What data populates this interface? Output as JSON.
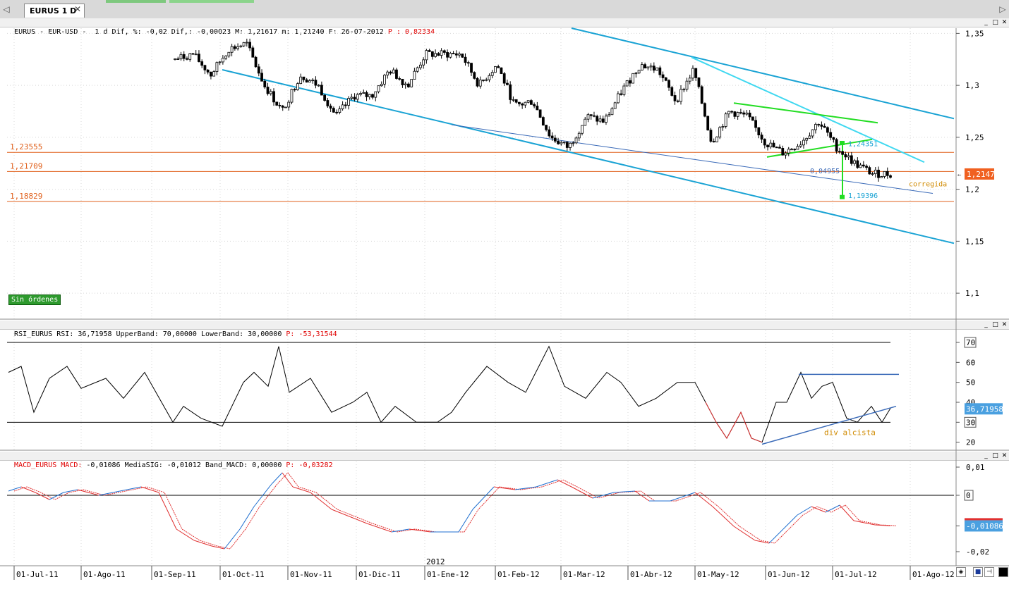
{
  "tabs": {
    "active_label": "EURUS 1 D",
    "close_glyph": "✕",
    "left_arrow": "◁",
    "right_arrow": "▷",
    "strip_colors": [
      "#7ec87e",
      "#8bd48b",
      "#e7a86a",
      "#c9c9e8",
      "#e6c4c4"
    ]
  },
  "price_header": {
    "text": "EURUS - EUR-USD -  1 d Dif, %: -0,02 Dif,: -0,00023 M: 1,21617 m: 1,21240 F: 26-07-2012 ",
    "p_text": "P : 0,82334"
  },
  "rsi_header": {
    "text": "RSI_EURUS RSI: 36,71958 UpperBand: 70,00000 LowerBand: 30,00000 ",
    "p_text": "P: -53,31544"
  },
  "macd_header": {
    "name": "MACD_EURUS MACD:",
    "text": " -0,01086 MediaSIG: -0,01012 Band_MACD: 0,00000 ",
    "p_text": "P: -0,03282"
  },
  "window_buttons": {
    "minimize": "_",
    "maximize": "□",
    "close": "✕"
  },
  "orders_button": {
    "label": "Sin órdenes"
  },
  "colors": {
    "channel": "#1aa3d4",
    "trendline_light": "#3fd8f0",
    "triangle": "#22dd22",
    "support_lines": "#e0601c",
    "inner_line": "#3a6ab8",
    "price_badge_bg": "#f06020",
    "rsi_badge_bg": "#4aa0e0",
    "macd_line": "#1f6fd0",
    "macd_signal": "#e03030"
  },
  "chart_data": [
    {
      "type": "candlestick",
      "series": [
        {
          "name": "EURUS - EUR-USD",
          "values": [
            1.325,
            1.33,
            1.31,
            1.335,
            1.34,
            1.3,
            1.275,
            1.31,
            1.3,
            1.27,
            1.29,
            1.29,
            1.315,
            1.3,
            1.33,
            1.33,
            1.33,
            1.3,
            1.32,
            1.28,
            1.285,
            1.25,
            1.24,
            1.27,
            1.265,
            1.295,
            1.32,
            1.315,
            1.285,
            1.315,
            1.245,
            1.275,
            1.27,
            1.245,
            1.235,
            1.245,
            1.265,
            1.24,
            1.225,
            1.215,
            1.2147
          ]
        }
      ],
      "x_tick_labels": [
        "01-Jul-11",
        "01-Ago-11",
        "01-Sep-11",
        "01-Oct-11",
        "01-Nov-11",
        "01-Dic-11",
        "01-Ene-12",
        "01-Feb-12",
        "01-Mar-12",
        "01-Abr-12",
        "01-May-12",
        "01-Jun-12",
        "01-Jul-12",
        "01-Ago-12"
      ],
      "year_marker": "2012",
      "y_tick_labels": [
        "1,35",
        "1,3",
        "1,25",
        "1,2",
        "1,15",
        "1,1"
      ],
      "ylim": [
        1.075,
        1.355
      ],
      "last_price": "1,2147",
      "horizontal_levels": [
        {
          "value": 1.23555,
          "label": "1,23555"
        },
        {
          "value": 1.21709,
          "label": "1,21709"
        },
        {
          "value": 1.18829,
          "label": "1,18829"
        }
      ],
      "annotations": {
        "pattern_top": "1,24351",
        "pattern_height": "0,04955",
        "target": "1,19396",
        "note": "corregida"
      }
    },
    {
      "type": "line",
      "series": [
        {
          "name": "RSI_EURUS",
          "last": "36,71958"
        }
      ],
      "y_tick_labels": [
        "70",
        "60",
        "50",
        "40",
        "30",
        "20"
      ],
      "ylim": [
        16,
        76
      ],
      "bands": {
        "upper": 70,
        "lower": 30
      },
      "annotation": "div alcista"
    },
    {
      "type": "line",
      "series": [
        {
          "name": "MACD",
          "last": "-0,01086"
        },
        {
          "name": "MediaSIG",
          "last": "-0,01012"
        }
      ],
      "y_tick_labels": [
        "0,01",
        "0",
        "-0,01086",
        "-0,02"
      ],
      "ylim": [
        -0.025,
        0.012
      ],
      "zero_line": 0
    }
  ]
}
